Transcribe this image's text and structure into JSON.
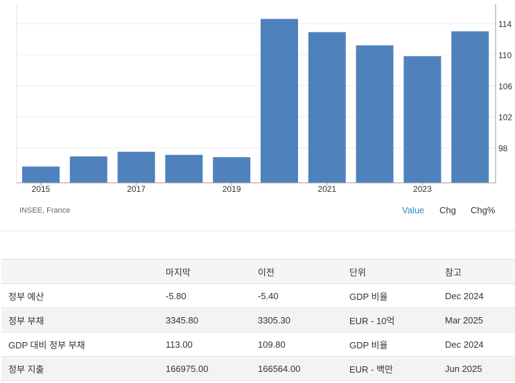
{
  "chart_data": {
    "type": "bar",
    "categories": [
      "2015",
      "2016",
      "2017",
      "2018",
      "2019",
      "2020",
      "2021",
      "2022",
      "2023",
      "2024"
    ],
    "values": [
      95.6,
      96.9,
      97.5,
      97.1,
      96.8,
      114.6,
      112.9,
      111.2,
      109.8,
      113.0
    ],
    "x_tick_labels": [
      "2015",
      "2017",
      "2019",
      "2021",
      "2023"
    ],
    "y_ticks": [
      98,
      102,
      106,
      110,
      114
    ],
    "ylim": [
      93.5,
      116.5
    ],
    "bar_color": "#4f81bd",
    "grid": true,
    "title": "",
    "xlabel": "",
    "ylabel": ""
  },
  "source": "INSEE, France",
  "view_tabs": {
    "value": "Value",
    "chg": "Chg",
    "chg_pct": "Chg%"
  },
  "colors": {
    "accent": "#2a8ad4",
    "bar": "#4f81bd"
  },
  "table": {
    "headers": [
      "",
      "마지막",
      "이전",
      "단위",
      "참고"
    ],
    "rows": [
      [
        "정부 예산",
        "-5.80",
        "-5.40",
        "GDP 비율",
        "Dec 2024"
      ],
      [
        "정부 부채",
        "3345.80",
        "3305.30",
        "EUR - 10억",
        "Mar 2025"
      ],
      [
        "GDP 대비 정부 부채",
        "113.00",
        "109.80",
        "GDP 비율",
        "Dec 2024"
      ],
      [
        "정부 지출",
        "166975.00",
        "166564.00",
        "EUR - 백만",
        "Jun 2025"
      ]
    ]
  }
}
